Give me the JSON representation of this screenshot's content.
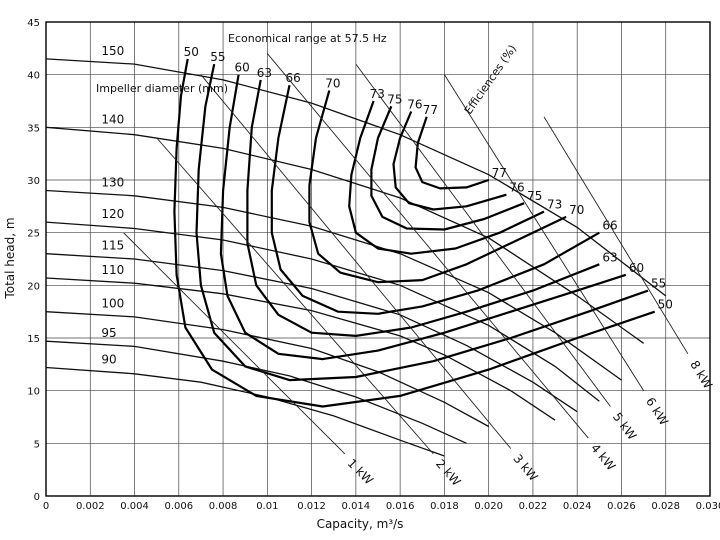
{
  "chart_data": {
    "type": "line",
    "title": "",
    "xlabel": "Capacity,   m³/s",
    "ylabel": "Total head,   m",
    "xlim": [
      0,
      0.03
    ],
    "ylim": [
      0,
      45
    ],
    "grid": true,
    "x_ticks": [
      "0",
      "0.002",
      "0.004",
      "0.006",
      "0.008",
      "0.01",
      "0.012",
      "0.014",
      "0.016",
      "0.018",
      "0.020",
      "0.022",
      "0.024",
      "0.026",
      "0.028",
      "0.030"
    ],
    "y_ticks": [
      "0",
      "5",
      "10",
      "15",
      "20",
      "25",
      "30",
      "35",
      "40",
      "45"
    ],
    "annotations": {
      "economical_range": "Economical range at 57.5 Hz",
      "impeller_label": "Impeller diameter (mm)",
      "efficiency_label": "Efficiences (%)"
    },
    "head_curves": [
      {
        "name": "150",
        "x": [
          0.0,
          0.004,
          0.008,
          0.012,
          0.016,
          0.02,
          0.024,
          0.028
        ],
        "y": [
          41.5,
          41.0,
          39.5,
          37.3,
          34.3,
          30.5,
          25.5,
          19.0
        ]
      },
      {
        "name": "140",
        "x": [
          0.0,
          0.004,
          0.008,
          0.012,
          0.016,
          0.02,
          0.024,
          0.027
        ],
        "y": [
          35.0,
          34.3,
          33.0,
          31.0,
          28.3,
          24.5,
          19.0,
          14.5
        ]
      },
      {
        "name": "130",
        "x": [
          0.0,
          0.004,
          0.008,
          0.012,
          0.016,
          0.02,
          0.023,
          0.026
        ],
        "y": [
          29.0,
          28.5,
          27.4,
          25.6,
          23.0,
          19.3,
          15.5,
          11.0
        ]
      },
      {
        "name": "120",
        "x": [
          0.0,
          0.004,
          0.008,
          0.012,
          0.016,
          0.02,
          0.023,
          0.025
        ],
        "y": [
          26.0,
          25.4,
          24.3,
          22.5,
          20.0,
          16.2,
          12.3,
          9.0
        ]
      },
      {
        "name": "115",
        "x": [
          0.0,
          0.004,
          0.008,
          0.012,
          0.016,
          0.019,
          0.022,
          0.024
        ],
        "y": [
          23.0,
          22.5,
          21.4,
          19.7,
          17.2,
          14.3,
          10.8,
          8.0
        ]
      },
      {
        "name": "110",
        "x": [
          0.0,
          0.004,
          0.008,
          0.012,
          0.016,
          0.018,
          0.021,
          0.023
        ],
        "y": [
          20.7,
          20.2,
          19.2,
          17.6,
          15.2,
          13.4,
          10.0,
          7.2
        ]
      },
      {
        "name": "100",
        "x": [
          0.0,
          0.004,
          0.008,
          0.012,
          0.015,
          0.018,
          0.02
        ],
        "y": [
          17.5,
          17.0,
          15.8,
          14.0,
          11.8,
          8.9,
          6.6
        ]
      },
      {
        "name": "95",
        "x": [
          0.0,
          0.004,
          0.008,
          0.011,
          0.014,
          0.017,
          0.019
        ],
        "y": [
          14.7,
          14.2,
          12.8,
          11.4,
          9.4,
          6.9,
          5.0
        ]
      },
      {
        "name": "90",
        "x": [
          0.0,
          0.004,
          0.007,
          0.01,
          0.013,
          0.016,
          0.018
        ],
        "y": [
          12.2,
          11.6,
          10.8,
          9.4,
          7.6,
          5.3,
          3.8
        ]
      }
    ],
    "efficiency_curves": [
      {
        "name": "50",
        "label_at": "top",
        "x": [
          0.0064,
          0.0061,
          0.0059,
          0.0058,
          0.0059,
          0.0063,
          0.0075,
          0.0095,
          0.0125,
          0.016,
          0.02,
          0.024,
          0.0275
        ],
        "y": [
          41.5,
          38,
          33,
          27,
          21,
          16,
          12,
          9.5,
          8.5,
          9.5,
          12,
          15,
          17.5
        ]
      },
      {
        "name": "55",
        "label_at": "top",
        "x": [
          0.0076,
          0.0072,
          0.0069,
          0.0068,
          0.007,
          0.0076,
          0.009,
          0.011,
          0.014,
          0.0175,
          0.021,
          0.0245,
          0.0272
        ],
        "y": [
          41,
          37,
          31,
          25,
          20,
          15.5,
          12.3,
          11,
          11.3,
          12.8,
          15,
          17.5,
          19.5
        ]
      },
      {
        "name": "60",
        "label_at": "top",
        "x": [
          0.0087,
          0.0083,
          0.008,
          0.0079,
          0.0082,
          0.009,
          0.0105,
          0.0125,
          0.015,
          0.018,
          0.021,
          0.024,
          0.0262
        ],
        "y": [
          40,
          35,
          29,
          23,
          19,
          15.5,
          13.5,
          13,
          13.8,
          15.5,
          17.5,
          19.5,
          21
        ]
      },
      {
        "name": "63",
        "label_at": "top",
        "x": [
          0.0097,
          0.0093,
          0.0091,
          0.0091,
          0.0095,
          0.0105,
          0.012,
          0.014,
          0.0165,
          0.019,
          0.022,
          0.025
        ],
        "y": [
          39.5,
          35,
          29,
          24,
          20,
          17.2,
          15.5,
          15.2,
          16,
          17.5,
          19.5,
          22
        ]
      },
      {
        "name": "66",
        "label_at": "top",
        "x": [
          0.011,
          0.0105,
          0.0102,
          0.0102,
          0.0106,
          0.0116,
          0.0132,
          0.015,
          0.017,
          0.0195,
          0.0225,
          0.025
        ],
        "y": [
          39,
          34,
          29,
          25,
          21.5,
          19,
          17.5,
          17.3,
          18,
          19.5,
          22,
          25
        ]
      },
      {
        "name": "70",
        "label_at": "top",
        "x": [
          0.0128,
          0.0122,
          0.0119,
          0.0119,
          0.0123,
          0.0133,
          0.015,
          0.017,
          0.019,
          0.021,
          0.0235
        ],
        "y": [
          38.5,
          34,
          29.5,
          26,
          23,
          21.2,
          20.3,
          20.5,
          22,
          24,
          26.5
        ]
      },
      {
        "name": "73",
        "label_at": "top",
        "x": [
          0.0148,
          0.0142,
          0.0138,
          0.0137,
          0.014,
          0.015,
          0.0165,
          0.0185,
          0.0205,
          0.0225
        ],
        "y": [
          37.5,
          34,
          30.5,
          27.5,
          25,
          23.5,
          23,
          23.5,
          25,
          27
        ]
      },
      {
        "name": "75",
        "label_at": "top",
        "x": [
          0.0156,
          0.015,
          0.0147,
          0.0147,
          0.0152,
          0.0163,
          0.018,
          0.0198,
          0.0216
        ],
        "y": [
          37,
          34,
          31,
          28.5,
          26.5,
          25.4,
          25.3,
          26.3,
          27.8
        ]
      },
      {
        "name": "76",
        "label_at": "top",
        "x": [
          0.0165,
          0.016,
          0.0157,
          0.0158,
          0.0164,
          0.0175,
          0.019,
          0.0208
        ],
        "y": [
          36.5,
          34,
          31.5,
          29.3,
          27.8,
          27.2,
          27.5,
          28.6
        ]
      },
      {
        "name": "77",
        "label_at": "top",
        "x": [
          0.0172,
          0.0168,
          0.0167,
          0.017,
          0.0178,
          0.019,
          0.02
        ],
        "y": [
          36,
          33.5,
          31.2,
          29.8,
          29.2,
          29.3,
          30
        ]
      }
    ],
    "power_lines": [
      {
        "name": "1 kW",
        "x": [
          0.0035,
          0.0135
        ],
        "y": [
          25,
          4
        ]
      },
      {
        "name": "2 kW",
        "x": [
          0.005,
          0.0175
        ],
        "y": [
          34,
          4
        ]
      },
      {
        "name": "3 kW",
        "x": [
          0.007,
          0.021
        ],
        "y": [
          40,
          4.5
        ]
      },
      {
        "name": "4 kW",
        "x": [
          0.01,
          0.0245
        ],
        "y": [
          42,
          5.5
        ]
      },
      {
        "name": "5 kW",
        "x": [
          0.014,
          0.0255
        ],
        "y": [
          41,
          8.5
        ]
      },
      {
        "name": "6 kW",
        "x": [
          0.018,
          0.027
        ],
        "y": [
          40,
          10
        ]
      },
      {
        "name": "8 kW",
        "x": [
          0.0225,
          0.029
        ],
        "y": [
          36,
          13.5
        ]
      }
    ]
  }
}
